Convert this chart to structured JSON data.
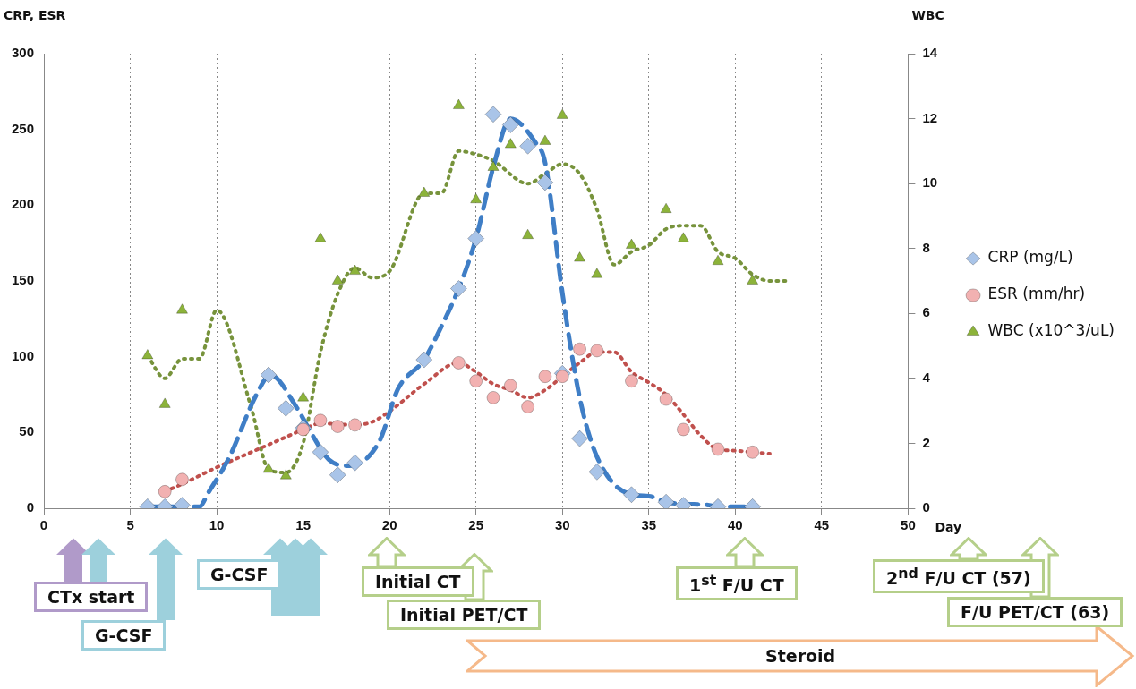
{
  "chart_data": {
    "type": "scatter",
    "ylabel": "CRP, ESR",
    "y2label": "WBC",
    "xlabel": "Day",
    "xlim": [
      0,
      50
    ],
    "xticks": [
      0,
      5,
      10,
      15,
      20,
      25,
      30,
      35,
      40,
      45,
      50
    ],
    "ylim": [
      0,
      300
    ],
    "yticks": [
      0,
      50,
      100,
      150,
      200,
      250,
      300
    ],
    "y2lim": [
      0,
      14
    ],
    "y2ticks": [
      0,
      2,
      4,
      6,
      8,
      10,
      12,
      14
    ],
    "grid": "x",
    "legend": "right",
    "series": [
      {
        "name": "CRP (mg/L)",
        "type": "scatter",
        "marker": "diamond",
        "color": "#a9c4e8",
        "x": [
          6,
          7,
          8,
          13,
          14,
          15,
          16,
          17,
          18,
          22,
          24,
          25,
          26,
          27,
          28,
          29,
          30,
          31,
          32,
          34,
          36,
          37,
          39,
          41
        ],
        "values": [
          1,
          1,
          2,
          88,
          66,
          53,
          37,
          22,
          30,
          98,
          145,
          178,
          260,
          253,
          239,
          215,
          89,
          46,
          24,
          9,
          4,
          2,
          1,
          1
        ]
      },
      {
        "name": "ESR (mm/hr)",
        "type": "scatter",
        "marker": "circle",
        "color": "#f2b1b1",
        "x": [
          7,
          8,
          15,
          16,
          17,
          18,
          24,
          25,
          26,
          27,
          28,
          29,
          30,
          31,
          32,
          34,
          36,
          37,
          39,
          41
        ],
        "values": [
          11,
          19,
          52,
          58,
          54,
          55,
          96,
          84,
          73,
          81,
          67,
          87,
          87,
          105,
          104,
          84,
          72,
          52,
          39,
          37
        ]
      },
      {
        "name": "WBC (x10^3/uL)",
        "type": "scatter",
        "marker": "triangle",
        "color": "#8cb33a",
        "axis": "y2",
        "x": [
          6,
          7,
          8,
          13,
          14,
          15,
          16,
          17,
          18,
          22,
          24,
          25,
          26,
          27,
          28,
          29,
          30,
          31,
          32,
          34,
          36,
          37,
          39,
          41
        ],
        "values": [
          4.7,
          3.2,
          6.1,
          1.2,
          1.0,
          3.4,
          8.3,
          7.0,
          7.3,
          9.7,
          12.4,
          9.5,
          10.5,
          11.2,
          8.4,
          11.3,
          12.1,
          7.7,
          7.2,
          8.1,
          9.2,
          8.3,
          7.6,
          7.0
        ]
      },
      {
        "type": "line",
        "marker": "none",
        "line_style": "dashed",
        "color": "#3f7ec6",
        "x": [
          6,
          8,
          9,
          9.5,
          10.7,
          12.3,
          13.1,
          14.6,
          15.5,
          16.5,
          17.7,
          19.4,
          20.5,
          22,
          23,
          24,
          25,
          26,
          27,
          28.4,
          29,
          30,
          31,
          32,
          34,
          35,
          36,
          37,
          38.5,
          39,
          40,
          41
        ],
        "values": [
          1,
          1,
          1,
          10,
          33,
          75,
          88,
          67,
          49,
          32,
          28,
          44,
          79,
          98,
          120,
          145,
          178,
          225,
          257,
          242,
          228,
          142,
          73,
          34,
          9,
          8,
          4,
          3,
          2,
          1,
          1,
          1
        ]
      },
      {
        "type": "line",
        "marker": "none",
        "line_style": "dotted",
        "color": "#c0504d",
        "x": [
          7,
          8,
          10,
          12,
          14,
          15,
          16,
          18,
          19,
          20,
          22,
          24,
          25,
          26,
          27,
          28,
          29,
          30,
          31,
          32,
          33,
          34,
          35,
          36,
          37,
          38,
          39,
          40,
          41,
          42
        ],
        "values": [
          11,
          16,
          27,
          37,
          47,
          52,
          56,
          55,
          57,
          64,
          82,
          96,
          90,
          82,
          78,
          73,
          78,
          87,
          96,
          103,
          103,
          90,
          83,
          75,
          62,
          48,
          39,
          38,
          37,
          36
        ]
      },
      {
        "type": "line",
        "marker": "none",
        "line_style": "dotted",
        "color": "#77933c",
        "axis": "y2",
        "x": [
          6,
          7,
          8,
          9,
          10,
          12,
          13,
          14,
          15,
          16,
          17,
          18,
          19,
          20,
          22,
          23,
          24,
          25,
          26,
          28,
          29,
          30,
          31,
          32,
          33,
          34,
          35,
          36,
          37,
          38,
          39,
          40,
          41,
          42,
          43
        ],
        "values": [
          4.7,
          4.0,
          4.6,
          4.6,
          6.1,
          3.1,
          1.2,
          1.1,
          2.0,
          4.8,
          6.6,
          7.4,
          7.1,
          7.3,
          9.7,
          9.7,
          11.0,
          10.9,
          10.7,
          10.0,
          10.3,
          10.6,
          10.3,
          9.2,
          7.5,
          7.9,
          8.1,
          8.6,
          8.7,
          8.7,
          7.9,
          7.7,
          7.2,
          7.0,
          7.0
        ]
      }
    ],
    "annotations": [
      "CTx start",
      "G-CSF",
      "G-CSF",
      "Initial CT",
      "Initial PET/CT",
      "1$^{st}$ F/U CT",
      "2$^{nd}$ F/U CT (57)",
      "F/U PET/CT (63)",
      "Steroid"
    ]
  }
}
